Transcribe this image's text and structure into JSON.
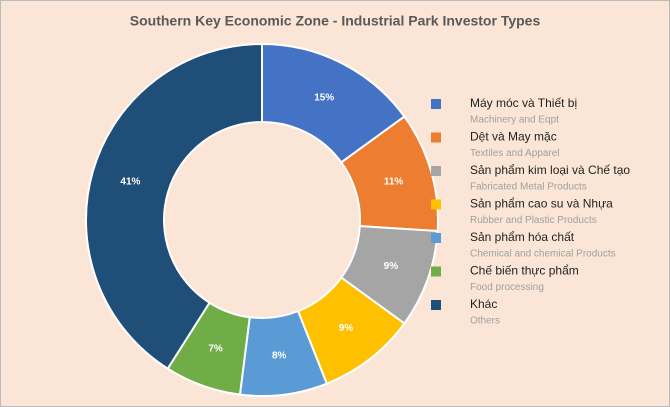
{
  "chart_data": {
    "type": "donut",
    "title": "Southern Key Economic Zone - Industrial Park Investor Types",
    "categories": [
      "Máy móc và Thiết bị",
      "Dệt và May mặc",
      "Sản phẩm kim loại và Chế tạo",
      "Sản phẩm cao su và Nhựa",
      "Sản phẩm hóa chất",
      "Chế biến thực phẩm",
      "Khác"
    ],
    "categories_en": [
      "Machinery and Eqpt",
      "Textiles and Apparel",
      "Fabricated Metal Products",
      "Rubber and Plastic Products",
      "Chemical and chemical Products",
      "Food processing",
      "Others"
    ],
    "values": [
      15,
      11,
      9,
      9,
      8,
      7,
      41
    ],
    "value_labels": [
      "15%",
      "11%",
      "9%",
      "9%",
      "8%",
      "7%",
      "41%"
    ],
    "colors": [
      "#4472c4",
      "#ed7d31",
      "#a5a5a5",
      "#ffc000",
      "#5b9bd5",
      "#70ad47",
      "#1f4e79"
    ],
    "legend": "right"
  }
}
